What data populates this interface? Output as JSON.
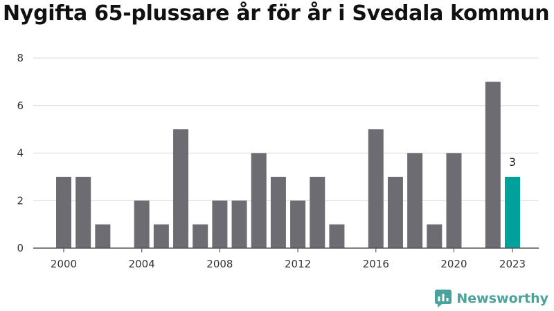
{
  "header": {
    "title": "Nygifta 65-plussare år för år i Svedala kommun"
  },
  "brand": {
    "name": "Newsworthy",
    "color": "#4aa39a"
  },
  "colors": {
    "bar": "#6d6c72",
    "highlight": "#00a19a",
    "grid": "#d9d9d9"
  },
  "chart_data": {
    "type": "bar",
    "title": "Nygifta 65-plussare år för år i Svedala kommun",
    "xlabel": "",
    "ylabel": "",
    "categories": [
      "2000",
      "2001",
      "2002",
      "2003",
      "2004",
      "2005",
      "2006",
      "2007",
      "2008",
      "2009",
      "2010",
      "2011",
      "2012",
      "2013",
      "2014",
      "2015",
      "2016",
      "2017",
      "2018",
      "2019",
      "2020",
      "2021",
      "2022",
      "2023"
    ],
    "values": [
      3,
      3,
      1,
      0,
      2,
      1,
      5,
      1,
      2,
      2,
      4,
      3,
      2,
      3,
      1,
      0,
      5,
      3,
      4,
      1,
      4,
      0,
      7,
      3
    ],
    "highlight": {
      "category": "2023",
      "value": 3,
      "label": "3"
    },
    "x_tick_labels": [
      "2000",
      "2004",
      "2008",
      "2012",
      "2016",
      "2020",
      "2023"
    ],
    "y_ticks": [
      0,
      2,
      4,
      6,
      8
    ],
    "ylim": [
      0,
      8
    ],
    "grid": true,
    "legend": "none"
  }
}
